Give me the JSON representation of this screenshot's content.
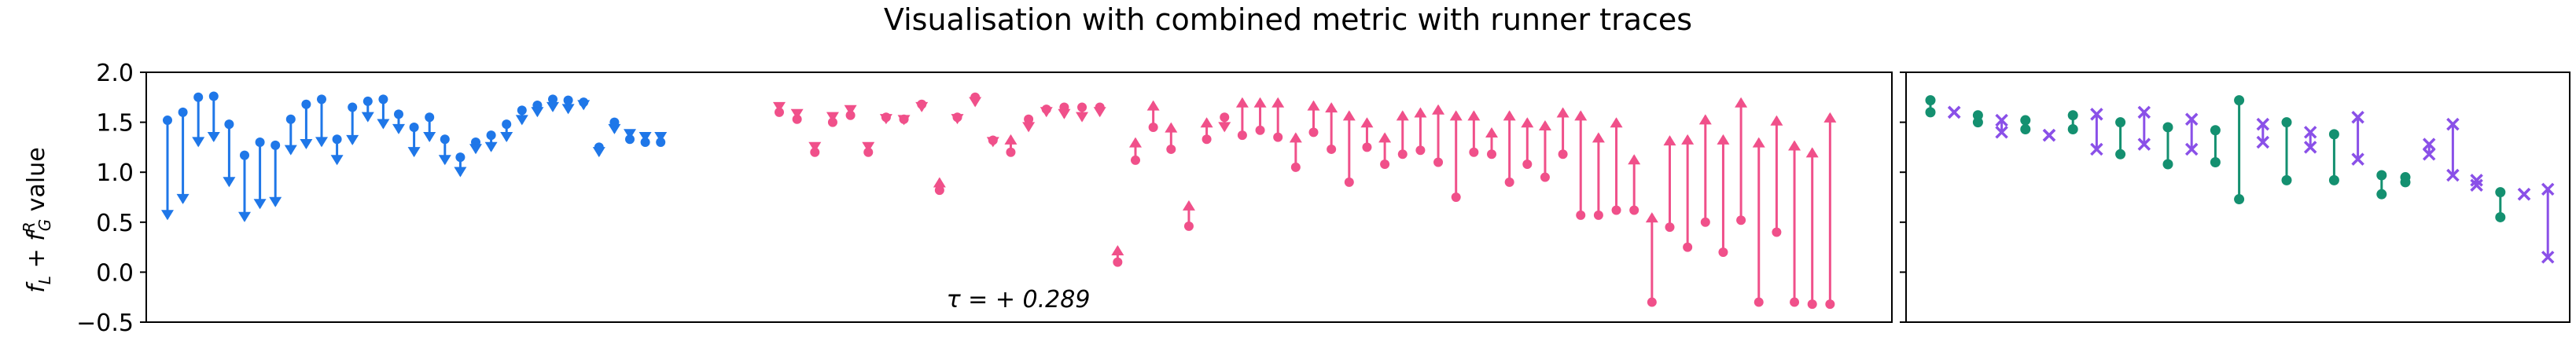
{
  "chart_data": {
    "type": "scatter",
    "title": "Visualisation with combined metric with runner traces",
    "ylabel_parts": {
      "main": "f",
      "sub1": "L",
      "plus": " + ",
      "sup2": "R",
      "sub2": "G",
      "tail": " value"
    },
    "ylim": [
      -0.5,
      2.0
    ],
    "yticks": [
      "−0.5",
      "0.0",
      "0.5",
      "1.0",
      "1.5",
      "2.0"
    ],
    "ytick_values": [
      -0.5,
      0.0,
      0.5,
      1.0,
      1.5,
      2.0
    ],
    "annotation": "τ = + 0.289",
    "colors": {
      "blue": "#1f77e8",
      "pink": "#f0508a",
      "green": "#149070",
      "purple": "#8a50e8"
    },
    "left_panel": {
      "blue_series": [
        [
          1.52,
          0.52
        ],
        [
          1.6,
          0.68
        ],
        [
          1.75,
          1.25
        ],
        [
          1.76,
          1.3
        ],
        [
          1.48,
          0.85
        ],
        [
          1.17,
          0.5
        ],
        [
          1.3,
          0.63
        ],
        [
          1.27,
          0.65
        ],
        [
          1.53,
          1.17
        ],
        [
          1.68,
          1.23
        ],
        [
          1.73,
          1.25
        ],
        [
          1.33,
          1.07
        ],
        [
          1.65,
          1.27
        ],
        [
          1.71,
          1.5
        ],
        [
          1.73,
          1.43
        ],
        [
          1.58,
          1.38
        ],
        [
          1.45,
          1.15
        ],
        [
          1.55,
          1.3
        ],
        [
          1.33,
          1.07
        ],
        [
          1.15,
          0.95
        ],
        [
          1.3,
          1.18
        ],
        [
          1.37,
          1.2
        ],
        [
          1.48,
          1.3
        ],
        [
          1.62,
          1.47
        ],
        [
          1.67,
          1.55
        ],
        [
          1.73,
          1.6
        ],
        [
          1.72,
          1.58
        ],
        [
          1.7,
          1.62
        ],
        [
          1.25,
          1.15
        ],
        [
          1.5,
          1.38
        ],
        [
          1.33,
          1.33
        ],
        [
          1.3,
          1.3
        ],
        [
          1.3,
          1.3
        ]
      ],
      "pink_series": [
        [
          1.6,
          1.6
        ],
        [
          1.53,
          1.53
        ],
        [
          1.2,
          1.2
        ],
        [
          1.5,
          1.5
        ],
        [
          1.57,
          1.57
        ],
        [
          1.2,
          1.2
        ],
        [
          1.55,
          1.48
        ],
        [
          1.53,
          1.47
        ],
        [
          1.68,
          1.6
        ],
        [
          0.82,
          0.95
        ],
        [
          1.55,
          1.48
        ],
        [
          1.75,
          1.65
        ],
        [
          1.32,
          1.25
        ],
        [
          1.2,
          1.38
        ],
        [
          1.53,
          1.4
        ],
        [
          1.63,
          1.55
        ],
        [
          1.65,
          1.53
        ],
        [
          1.65,
          1.5
        ],
        [
          1.65,
          1.55
        ],
        [
          0.1,
          0.27
        ],
        [
          1.12,
          1.35
        ],
        [
          1.45,
          1.72
        ],
        [
          1.23,
          1.5
        ],
        [
          0.46,
          0.72
        ],
        [
          1.33,
          1.55
        ],
        [
          1.55,
          1.4
        ],
        [
          1.37,
          1.75
        ],
        [
          1.42,
          1.75
        ],
        [
          1.35,
          1.75
        ],
        [
          1.05,
          1.4
        ],
        [
          1.4,
          1.72
        ],
        [
          1.23,
          1.7
        ],
        [
          0.9,
          1.62
        ],
        [
          1.25,
          1.55
        ],
        [
          1.08,
          1.4
        ],
        [
          1.18,
          1.62
        ],
        [
          1.22,
          1.65
        ],
        [
          1.1,
          1.68
        ],
        [
          0.75,
          1.62
        ],
        [
          1.2,
          1.62
        ],
        [
          1.18,
          1.45
        ],
        [
          0.9,
          1.62
        ],
        [
          1.08,
          1.55
        ],
        [
          0.95,
          1.52
        ],
        [
          1.18,
          1.65
        ],
        [
          0.57,
          1.62
        ],
        [
          0.57,
          1.4
        ],
        [
          0.62,
          1.55
        ],
        [
          0.62,
          1.18
        ],
        [
          -0.3,
          0.6
        ],
        [
          0.45,
          1.37
        ],
        [
          0.25,
          1.38
        ],
        [
          0.5,
          1.58
        ],
        [
          0.2,
          1.38
        ],
        [
          0.52,
          1.75
        ],
        [
          -0.3,
          1.35
        ],
        [
          0.4,
          1.57
        ],
        [
          -0.3,
          1.32
        ],
        [
          -0.32,
          1.25
        ],
        [
          -0.32,
          1.6
        ]
      ]
    },
    "right_panel": {
      "green_series": [
        [
          1.6,
          1.72
        ],
        [
          1.57,
          1.5
        ],
        [
          1.52,
          1.43
        ],
        [
          1.43,
          1.57
        ],
        [
          1.18,
          1.5
        ],
        [
          1.08,
          1.45
        ],
        [
          1.1,
          1.42
        ],
        [
          0.73,
          1.72
        ],
        [
          0.92,
          1.5
        ],
        [
          0.92,
          1.38
        ],
        [
          0.78,
          0.97
        ],
        [
          0.9,
          0.95
        ],
        [
          0.55,
          0.8
        ]
      ],
      "purple_series": [
        [
          1.6,
          1.6
        ],
        [
          1.52,
          1.4
        ],
        [
          1.37,
          1.37
        ],
        [
          1.23,
          1.58
        ],
        [
          1.28,
          1.6
        ],
        [
          1.23,
          1.53
        ],
        [
          1.3,
          1.48
        ],
        [
          1.25,
          1.4
        ],
        [
          1.13,
          1.55
        ],
        [
          1.18,
          1.28
        ],
        [
          0.97,
          1.48
        ],
        [
          0.87,
          0.92
        ],
        [
          0.78,
          0.78
        ],
        [
          0.15,
          0.83
        ]
      ]
    }
  }
}
